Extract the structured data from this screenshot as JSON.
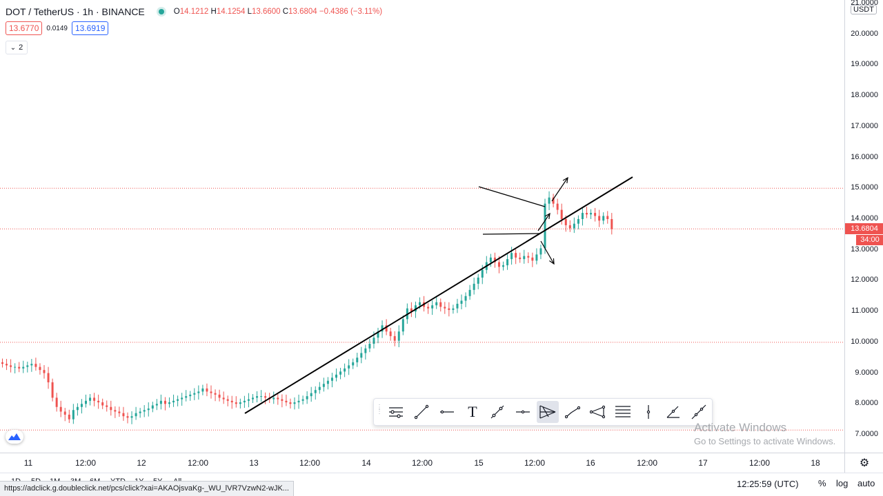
{
  "legend": {
    "symbol": "DOT / TetherUS · 1h · BINANCE",
    "open_label": "O",
    "open": "14.1212",
    "high_label": "H",
    "high": "14.1254",
    "low_label": "L",
    "low": "13.6600",
    "close_label": "C",
    "close": "13.6804",
    "change": "−0.4386 (−3.11%)"
  },
  "quote": {
    "bid": "13.6770",
    "spread": "0.0149",
    "ask": "13.6919"
  },
  "indicators_toggle": {
    "count": "2",
    "chevron": "⌄"
  },
  "price_scale": {
    "currency": "USDT",
    "ticks": [
      "21.0000",
      "20.0000",
      "19.0000",
      "18.0000",
      "17.0000",
      "16.0000",
      "15.0000",
      "14.0000",
      "13.0000",
      "12.0000",
      "11.0000",
      "10.0000",
      "9.0000",
      "8.0000",
      "7.0000"
    ],
    "last_price": "13.6804",
    "countdown": "34:00"
  },
  "time_axis": {
    "ticks": [
      "11",
      "12:00",
      "12",
      "12:00",
      "13",
      "12:00",
      "14",
      "12:00",
      "15",
      "12:00",
      "16",
      "12:00",
      "17",
      "12:00",
      "18"
    ]
  },
  "bottom_bar": {
    "ranges": [
      "1D",
      "5D",
      "1M",
      "3M",
      "6M",
      "YTD",
      "1Y",
      "5Y",
      "All"
    ],
    "clock": "12:25:59 (UTC)",
    "percent": "%",
    "log": "log",
    "auto": "auto"
  },
  "status_url": "https://adclick.g.doubleclick.net/pcs/click?xai=AKAOjsvaKg-_WU_lVR7VzwN2-wJK...",
  "watermark": {
    "line1": "Activate Windows",
    "line2": "Go to Settings to activate Windows."
  },
  "drawing_toolbar": {
    "icons": [
      "grip-icon",
      "settings-lines-icon",
      "line-tool-icon",
      "horizontal-line-icon",
      "text-tool-icon",
      "trend-line-icon",
      "horizontal-ray-icon",
      "pitchfork-icon",
      "path-icon",
      "polyline-icon",
      "fib-levels-icon",
      "vertical-line-icon",
      "angle-icon",
      "extended-line-icon"
    ],
    "text_glyph": "T"
  },
  "colors": {
    "up": "#26a69a",
    "down": "#ef5350",
    "accent": "#2962ff",
    "price_line": "#ef5350"
  },
  "chart_data": {
    "type": "candlestick",
    "symbol": "DOT / TetherUS",
    "interval": "1h",
    "exchange": "BINANCE",
    "ylim": [
      7.0,
      21.0
    ],
    "close_series": [
      9.3,
      9.25,
      9.2,
      9.2,
      9.15,
      9.2,
      9.25,
      9.3,
      9.2,
      9.1,
      9.0,
      8.7,
      8.2,
      7.9,
      7.75,
      7.65,
      7.5,
      7.8,
      7.9,
      8.0,
      8.1,
      8.2,
      8.1,
      8.05,
      7.95,
      7.9,
      7.8,
      7.75,
      7.7,
      7.6,
      7.55,
      7.6,
      7.7,
      7.75,
      7.8,
      7.85,
      7.95,
      8.0,
      8.1,
      8.0,
      8.05,
      8.1,
      8.15,
      8.2,
      8.25,
      8.3,
      8.35,
      8.4,
      8.5,
      8.4,
      8.35,
      8.3,
      8.2,
      8.15,
      8.1,
      8.05,
      8.0,
      8.05,
      8.1,
      8.15,
      8.2,
      8.25,
      8.25,
      8.2,
      8.15,
      8.2,
      8.15,
      8.1,
      8.05,
      8.0,
      8.05,
      8.1,
      8.15,
      8.25,
      8.35,
      8.45,
      8.55,
      8.65,
      8.75,
      8.85,
      8.95,
      9.05,
      9.15,
      9.25,
      9.35,
      9.5,
      9.65,
      9.8,
      9.95,
      10.15,
      10.35,
      10.55,
      10.35,
      10.2,
      10.05,
      10.35,
      10.75,
      11.1,
      11.0,
      11.2,
      11.3,
      11.15,
      11.1,
      11.2,
      11.3,
      11.15,
      11.1,
      11.05,
      11.1,
      11.25,
      11.35,
      11.5,
      11.7,
      11.9,
      12.1,
      12.35,
      12.6,
      12.75,
      12.6,
      12.45,
      12.5,
      12.7,
      12.9,
      12.75,
      12.7,
      12.8,
      12.75,
      12.65,
      12.85,
      13.05,
      14.5,
      14.7,
      14.5,
      14.3,
      14.0,
      13.8,
      13.7,
      13.85,
      14.0,
      14.2,
      14.15,
      14.2,
      14.1,
      13.95,
      14.1,
      14.0,
      13.68
    ],
    "annotations": {
      "trend_line": [
        [
          0,
          7.55
        ],
        [
          1,
          15.4
        ]
      ],
      "triangle_upper": "from 15.05 to 14.45",
      "triangle_lower": "13.6",
      "arrows": [
        "breakout up",
        "breakout up",
        "breakdown"
      ]
    },
    "horizontal_lines": [
      15.0,
      13.6804,
      10.0,
      7.15
    ],
    "current_price": 13.6804
  }
}
